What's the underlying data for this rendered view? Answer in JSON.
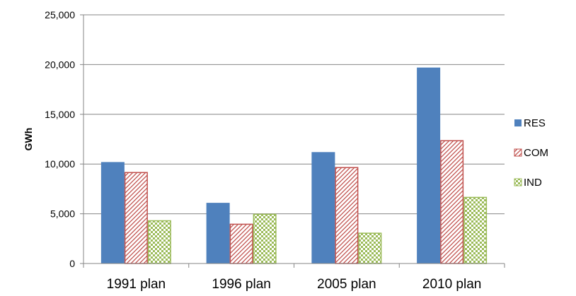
{
  "chart_data": {
    "type": "bar",
    "categories": [
      "1991 plan",
      "1996 plan",
      "2005 plan",
      "2010 plan"
    ],
    "series": [
      {
        "name": "RES",
        "values": [
          10200,
          6100,
          11200,
          19700
        ],
        "color": "#4f81bd",
        "pattern": "solid"
      },
      {
        "name": "COM",
        "values": [
          9200,
          4000,
          9700,
          12400
        ],
        "color": "#c0504d",
        "pattern": "diagonal-hatch"
      },
      {
        "name": "IND",
        "values": [
          4350,
          5000,
          3100,
          6700
        ],
        "color": "#9bbb59",
        "pattern": "checker"
      }
    ],
    "ylabel": "GWh",
    "xlabel": "",
    "ylim": [
      0,
      25000
    ],
    "yticks": [
      "0",
      "5,000",
      "10,000",
      "15,000",
      "20,000",
      "25,000"
    ],
    "grid": true,
    "legend_position": "right"
  }
}
